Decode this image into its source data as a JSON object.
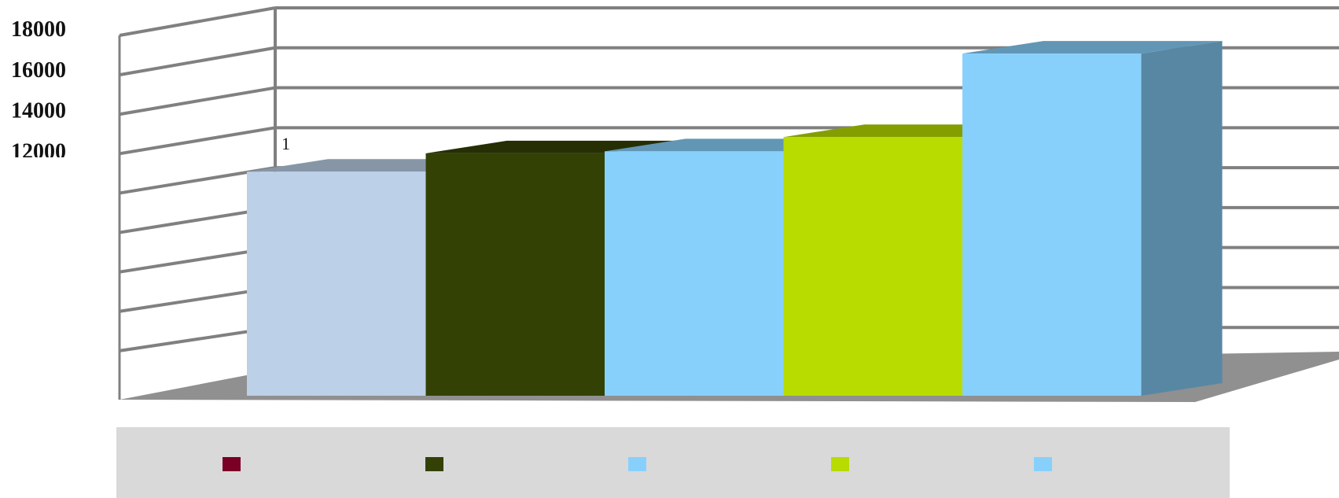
{
  "chart_data": {
    "type": "bar",
    "title": "",
    "xlabel": "",
    "ylabel": "",
    "y_tick_labels": [
      "12000",
      "14000",
      "16000",
      "18000"
    ],
    "ylim": [
      0,
      18000
    ],
    "grid": true,
    "three_d": true,
    "legend_position": "bottom",
    "annotation": "1",
    "categories": [
      "",
      "",
      "",
      "",
      ""
    ],
    "series": [
      {
        "values": [
          11000,
          0,
          0,
          0,
          0
        ],
        "bar_color": "#bcd0e8",
        "legend_color": "#7a0026"
      },
      {
        "values": [
          0,
          11900,
          0,
          0,
          0
        ],
        "bar_color": "#334104",
        "legend_color": "#334104"
      },
      {
        "values": [
          0,
          0,
          12000,
          0,
          0
        ],
        "bar_color": "#88d0fc",
        "legend_color": "#88d0fc"
      },
      {
        "values": [
          0,
          0,
          0,
          12700,
          0
        ],
        "bar_color": "#b8db00",
        "legend_color": "#b8db00"
      },
      {
        "values": [
          0,
          0,
          0,
          0,
          16800
        ],
        "bar_color": "#88d0fc",
        "legend_color": "#88d0fc"
      }
    ],
    "colors": {
      "grid": "#808080",
      "floor": "#909090",
      "legend_bg": "#d9d9d9"
    }
  }
}
